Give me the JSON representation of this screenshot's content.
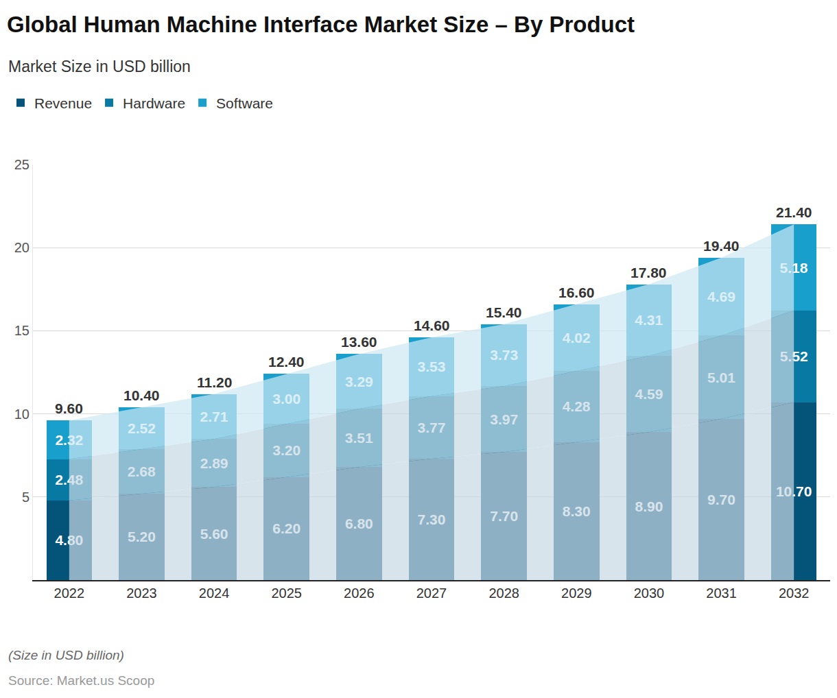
{
  "chart_data": {
    "type": "bar",
    "title": "Global Human Machine Interface Market Size – By Product",
    "subtitle": "Market Size in USD billion",
    "footnote": "(Size in USD billion)",
    "source": "Source: Market.us Scoop",
    "categories": [
      "2022",
      "2023",
      "2024",
      "2025",
      "2026",
      "2027",
      "2028",
      "2029",
      "2030",
      "2031",
      "2032"
    ],
    "series": [
      {
        "name": "Revenue",
        "color": "#045379",
        "values": [
          4.8,
          5.2,
          5.6,
          6.2,
          6.8,
          7.3,
          7.7,
          8.3,
          8.9,
          9.7,
          10.7
        ],
        "value_labels": [
          "4.80",
          "5.20",
          "5.60",
          "6.20",
          "6.80",
          "7.30",
          "7.70",
          "8.30",
          "8.90",
          "9.70",
          "10.70"
        ]
      },
      {
        "name": "Hardware",
        "color": "#0779a3",
        "values": [
          2.48,
          2.68,
          2.89,
          3.2,
          3.51,
          3.77,
          3.97,
          4.28,
          4.59,
          5.01,
          5.52
        ],
        "value_labels": [
          "2.48",
          "2.68",
          "2.89",
          "3.20",
          "3.51",
          "3.77",
          "3.97",
          "4.28",
          "4.59",
          "5.01",
          "5.52"
        ]
      },
      {
        "name": "Software",
        "color": "#189fcb",
        "values": [
          2.32,
          2.52,
          2.71,
          3.0,
          3.29,
          3.53,
          3.73,
          4.02,
          4.31,
          4.69,
          5.18
        ],
        "value_labels": [
          "2.32",
          "2.52",
          "2.71",
          "3.00",
          "3.29",
          "3.53",
          "3.73",
          "4.02",
          "4.31",
          "4.69",
          "5.18"
        ]
      }
    ],
    "totals": [
      9.6,
      10.4,
      11.2,
      12.4,
      13.6,
      14.6,
      15.4,
      16.6,
      17.8,
      19.4,
      21.4
    ],
    "total_labels": [
      "9.60",
      "10.40",
      "11.20",
      "12.40",
      "13.60",
      "14.60",
      "15.40",
      "16.60",
      "17.80",
      "19.40",
      "21.40"
    ],
    "ylim": [
      0,
      25
    ],
    "yticks": [
      5,
      10,
      15,
      20,
      25
    ],
    "grid": true,
    "stacked": true,
    "data_labels": true,
    "legend": "top-left"
  }
}
